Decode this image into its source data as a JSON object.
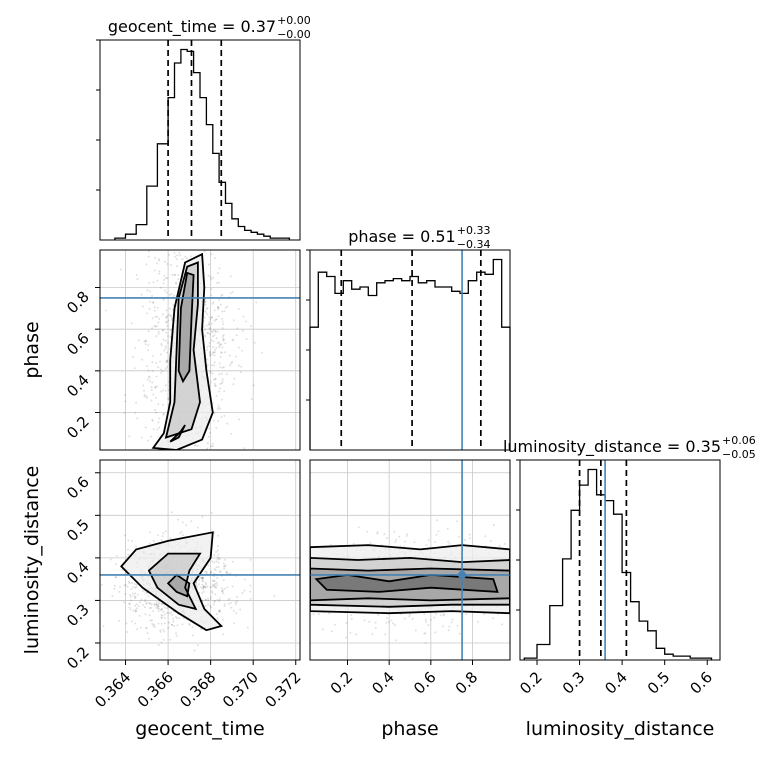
{
  "chart_data": {
    "type": "corner",
    "parameters": [
      "geocent_time",
      "phase",
      "luminosity_distance"
    ],
    "titles": [
      {
        "param": "geocent_time",
        "median": "0.37",
        "plus": "+0.00",
        "minus": "−0.00"
      },
      {
        "param": "phase",
        "median": "0.51",
        "plus": "+0.33",
        "minus": "−0.34"
      },
      {
        "param": "luminosity_distance",
        "median": "0.35",
        "plus": "+0.06",
        "minus": "−0.05"
      }
    ],
    "axes": {
      "geocent_time": {
        "range": [
          0.3628,
          0.3722
        ],
        "ticks": [
          "0.364",
          "0.366",
          "0.368",
          "0.370",
          "0.372"
        ],
        "tick_values": [
          0.364,
          0.366,
          0.368,
          0.37,
          0.372
        ]
      },
      "phase": {
        "range": [
          0.02,
          0.98
        ],
        "ticks": [
          "0.2",
          "0.4",
          "0.6",
          "0.8"
        ],
        "tick_values": [
          0.2,
          0.4,
          0.6,
          0.8
        ]
      },
      "luminosity_distance": {
        "range": [
          0.16,
          0.63
        ],
        "ticks": [
          "0.2",
          "0.3",
          "0.4",
          "0.5",
          "0.6"
        ],
        "tick_values": [
          0.2,
          0.3,
          0.4,
          0.5,
          0.6
        ]
      }
    },
    "quantiles": {
      "geocent_time": [
        0.366,
        0.3671,
        0.3685
      ],
      "phase": [
        0.17,
        0.51,
        0.84
      ],
      "luminosity_distance": [
        0.3,
        0.35,
        0.41
      ]
    },
    "truths": {
      "geocent_time": null,
      "phase": 0.75,
      "luminosity_distance": 0.36
    },
    "histograms": {
      "geocent_time": {
        "edges": [
          0.3635,
          0.364,
          0.3645,
          0.365,
          0.3655,
          0.366,
          0.3663,
          0.3666,
          0.3669,
          0.3672,
          0.3675,
          0.3678,
          0.3681,
          0.3684,
          0.3687,
          0.369,
          0.3693,
          0.3696,
          0.3699,
          0.3702,
          0.3705,
          0.3708,
          0.3711,
          0.3714,
          0.3717
        ],
        "counts": [
          0.01,
          0.03,
          0.08,
          0.28,
          0.5,
          0.74,
          0.92,
          0.99,
          0.98,
          0.87,
          0.74,
          0.6,
          0.45,
          0.3,
          0.19,
          0.11,
          0.07,
          0.05,
          0.04,
          0.03,
          0.02,
          0.01,
          0.01,
          0.01
        ]
      },
      "phase": {
        "edges": [
          0.02,
          0.06,
          0.1,
          0.14,
          0.18,
          0.22,
          0.26,
          0.3,
          0.34,
          0.38,
          0.42,
          0.46,
          0.5,
          0.54,
          0.58,
          0.62,
          0.66,
          0.7,
          0.74,
          0.78,
          0.82,
          0.86,
          0.9,
          0.94,
          0.98
        ],
        "counts": [
          0.58,
          0.84,
          0.82,
          0.74,
          0.8,
          0.76,
          0.77,
          0.73,
          0.79,
          0.8,
          0.81,
          0.8,
          0.82,
          0.79,
          0.8,
          0.77,
          0.77,
          0.75,
          0.74,
          0.8,
          0.84,
          0.83,
          0.9,
          0.58
        ]
      },
      "luminosity_distance": {
        "edges": [
          0.17,
          0.2,
          0.23,
          0.26,
          0.28,
          0.3,
          0.32,
          0.34,
          0.36,
          0.38,
          0.4,
          0.42,
          0.44,
          0.46,
          0.48,
          0.5,
          0.52,
          0.54,
          0.56,
          0.58,
          0.61
        ],
        "counts": [
          0.01,
          0.08,
          0.28,
          0.52,
          0.77,
          0.9,
          0.98,
          0.85,
          0.82,
          0.75,
          0.45,
          0.3,
          0.2,
          0.15,
          0.06,
          0.03,
          0.02,
          0.02,
          0.01,
          0.01
        ]
      }
    },
    "density_2d": [
      {
        "x": "geocent_time",
        "y": "phase",
        "contours": [
          [
            [
              0.3653,
              0.03
            ],
            [
              0.3658,
              0.1
            ],
            [
              0.3661,
              0.25
            ],
            [
              0.3661,
              0.45
            ],
            [
              0.3663,
              0.7
            ],
            [
              0.3668,
              0.92
            ],
            [
              0.3676,
              0.96
            ],
            [
              0.3677,
              0.8
            ],
            [
              0.3676,
              0.6
            ],
            [
              0.3678,
              0.4
            ],
            [
              0.3681,
              0.2
            ],
            [
              0.3676,
              0.07
            ],
            [
              0.3664,
              0.02
            ],
            [
              0.3653,
              0.03
            ]
          ],
          [
            [
              0.3659,
              0.08
            ],
            [
              0.3663,
              0.25
            ],
            [
              0.3664,
              0.5
            ],
            [
              0.3665,
              0.75
            ],
            [
              0.3669,
              0.9
            ],
            [
              0.3674,
              0.92
            ],
            [
              0.3674,
              0.72
            ],
            [
              0.3672,
              0.5
            ],
            [
              0.3675,
              0.25
            ],
            [
              0.3671,
              0.12
            ],
            [
              0.3659,
              0.08
            ]
          ],
          [
            [
              0.3665,
              0.4
            ],
            [
              0.3666,
              0.7
            ],
            [
              0.3669,
              0.87
            ],
            [
              0.3672,
              0.86
            ],
            [
              0.3671,
              0.65
            ],
            [
              0.367,
              0.4
            ],
            [
              0.3667,
              0.35
            ],
            [
              0.3665,
              0.4
            ]
          ],
          [
            [
              0.3661,
              0.06
            ],
            [
              0.3666,
              0.11
            ],
            [
              0.3668,
              0.14
            ],
            [
              0.3665,
              0.08
            ],
            [
              0.3661,
              0.06
            ]
          ]
        ],
        "points_center": [
          0.3669,
          0.5
        ],
        "points_spread": [
          0.0011,
          0.27
        ]
      },
      {
        "x": "geocent_time",
        "y": "luminosity_distance",
        "contours": [
          [
            [
              0.3638,
              0.38
            ],
            [
              0.3645,
              0.42
            ],
            [
              0.366,
              0.44
            ],
            [
              0.3681,
              0.46
            ],
            [
              0.368,
              0.4
            ],
            [
              0.3672,
              0.34
            ],
            [
              0.3677,
              0.28
            ],
            [
              0.3685,
              0.24
            ],
            [
              0.3678,
              0.23
            ],
            [
              0.3665,
              0.27
            ],
            [
              0.3648,
              0.33
            ],
            [
              0.3638,
              0.38
            ]
          ],
          [
            [
              0.3651,
              0.37
            ],
            [
              0.366,
              0.41
            ],
            [
              0.3675,
              0.41
            ],
            [
              0.367,
              0.37
            ],
            [
              0.3668,
              0.33
            ],
            [
              0.3673,
              0.28
            ],
            [
              0.3665,
              0.29
            ],
            [
              0.3655,
              0.33
            ],
            [
              0.3651,
              0.37
            ]
          ],
          [
            [
              0.366,
              0.34
            ],
            [
              0.3664,
              0.36
            ],
            [
              0.367,
              0.34
            ],
            [
              0.3669,
              0.31
            ],
            [
              0.3664,
              0.32
            ],
            [
              0.366,
              0.34
            ]
          ]
        ],
        "points_center": [
          0.3664,
          0.34
        ],
        "points_spread": [
          0.0013,
          0.05
        ]
      },
      {
        "x": "phase",
        "y": "luminosity_distance",
        "contours": [
          [
            [
              0.02,
              0.425
            ],
            [
              0.3,
              0.43
            ],
            [
              0.55,
              0.42
            ],
            [
              0.75,
              0.43
            ],
            [
              0.98,
              0.42
            ],
            [
              0.98,
              0.27
            ],
            [
              0.7,
              0.275
            ],
            [
              0.4,
              0.27
            ],
            [
              0.02,
              0.275
            ]
          ],
          [
            [
              0.02,
              0.4
            ],
            [
              0.25,
              0.395
            ],
            [
              0.5,
              0.4
            ],
            [
              0.75,
              0.39
            ],
            [
              0.98,
              0.395
            ],
            [
              0.98,
              0.29
            ],
            [
              0.7,
              0.29
            ],
            [
              0.4,
              0.285
            ],
            [
              0.02,
              0.29
            ]
          ],
          [
            [
              0.02,
              0.375
            ],
            [
              0.3,
              0.37
            ],
            [
              0.6,
              0.375
            ],
            [
              0.98,
              0.37
            ],
            [
              0.98,
              0.305
            ],
            [
              0.6,
              0.3
            ],
            [
              0.3,
              0.305
            ],
            [
              0.02,
              0.3
            ]
          ],
          [
            [
              0.05,
              0.35
            ],
            [
              0.2,
              0.36
            ],
            [
              0.4,
              0.345
            ],
            [
              0.6,
              0.36
            ],
            [
              0.9,
              0.35
            ],
            [
              0.92,
              0.32
            ],
            [
              0.6,
              0.33
            ],
            [
              0.35,
              0.32
            ],
            [
              0.1,
              0.325
            ],
            [
              0.05,
              0.35
            ]
          ]
        ],
        "points_center": [
          0.5,
          0.345
        ],
        "points_spread": [
          0.3,
          0.05
        ]
      }
    ]
  }
}
